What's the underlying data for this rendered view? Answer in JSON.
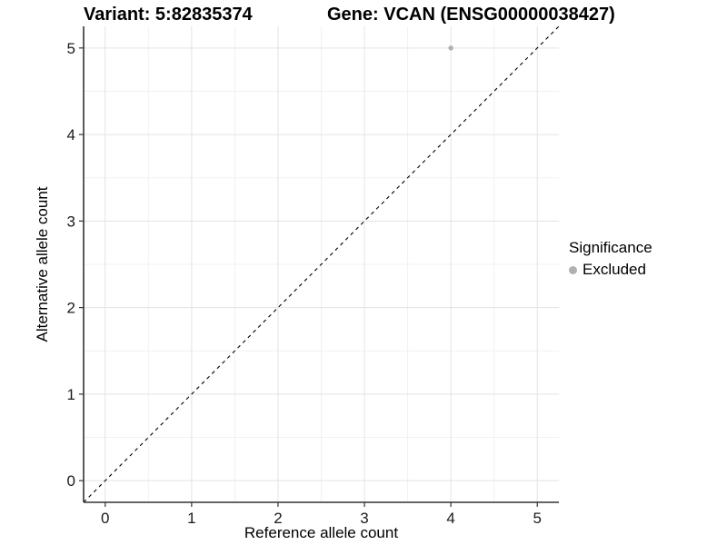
{
  "header": {
    "variant_title": "Variant: 5:82835374",
    "gene_title": "Gene: VCAN (ENSG00000038427)"
  },
  "legend": {
    "title": "Significance",
    "items": [
      {
        "label": "Excluded",
        "color": "#b0b0b0"
      }
    ]
  },
  "chart_data": {
    "type": "scatter",
    "xlabel": "Reference allele count",
    "ylabel": "Alternative allele count",
    "xlim": [
      -0.25,
      5.25
    ],
    "ylim": [
      -0.25,
      5.25
    ],
    "xticks": [
      0,
      1,
      2,
      3,
      4,
      5
    ],
    "yticks": [
      0,
      1,
      2,
      3,
      4,
      5
    ],
    "grid": "major+minor",
    "legend_position": "right",
    "series": [
      {
        "name": "Excluded",
        "color": "#b0b0b0",
        "points": [
          {
            "x": 4,
            "y": 5
          }
        ]
      }
    ],
    "identity_line": {
      "slope": 1,
      "intercept": 0,
      "style": "dashed",
      "color": "#000000"
    },
    "colors": {
      "grid_major": "#e3e3e3",
      "grid_minor": "#f1f1f1",
      "axis_line": "#333333",
      "tick_mark": "#333333",
      "tick_text": "#1a1a1a",
      "background": "#ffffff"
    }
  }
}
